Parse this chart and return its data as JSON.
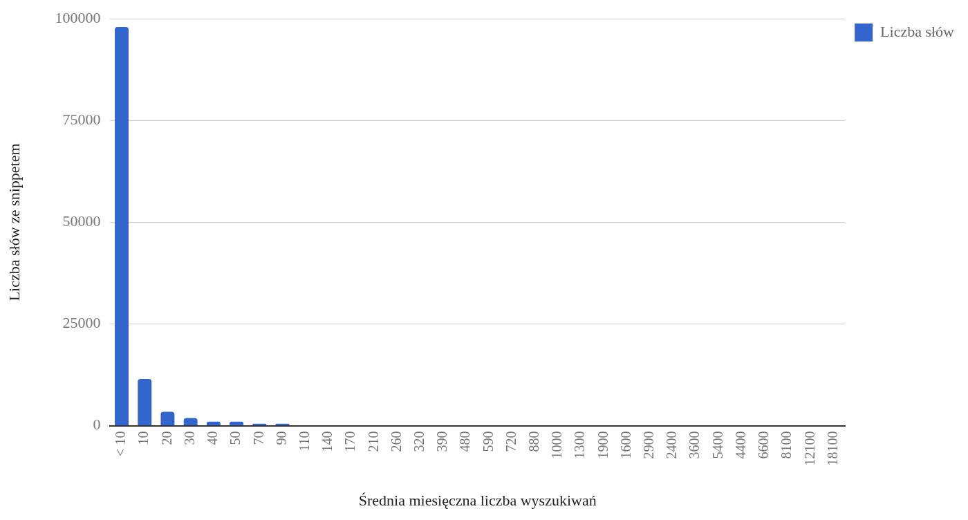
{
  "chart_data": {
    "type": "bar",
    "xlabel": "Średnia miesięczna liczba wyszukiwań",
    "ylabel": "Liczba słów ze snippetem",
    "categories": [
      "< 10",
      "10",
      "20",
      "30",
      "40",
      "50",
      "70",
      "90",
      "110",
      "140",
      "170",
      "210",
      "260",
      "320",
      "390",
      "480",
      "590",
      "720",
      "880",
      "1000",
      "1300",
      "1900",
      "1600",
      "2900",
      "2400",
      "3600",
      "5400",
      "4400",
      "6600",
      "8100",
      "12100",
      "18100"
    ],
    "series": [
      {
        "name": "Liczba słów",
        "color": "#3366cc",
        "values": [
          98000,
          11500,
          3400,
          1900,
          1000,
          1000,
          500,
          500,
          0,
          0,
          0,
          0,
          0,
          0,
          0,
          0,
          0,
          0,
          0,
          0,
          0,
          0,
          0,
          0,
          0,
          0,
          0,
          0,
          0,
          0,
          0,
          0
        ]
      }
    ],
    "ylim": [
      0,
      100000
    ],
    "yticks": [
      0,
      25000,
      50000,
      75000,
      100000
    ],
    "grid": "y",
    "legend": "top right"
  }
}
